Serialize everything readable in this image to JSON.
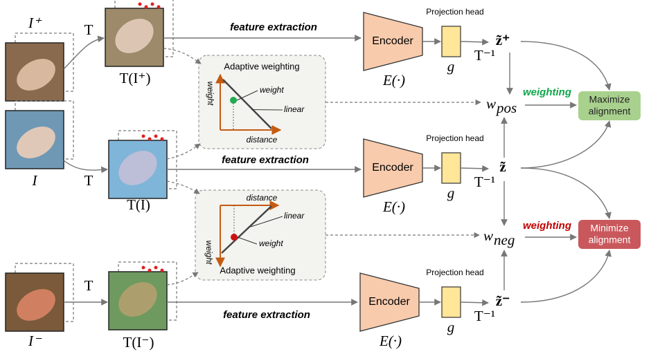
{
  "rows": [
    {
      "input": "I⁺",
      "transform": "T",
      "transformed": "T(I⁺)",
      "feature": "feature extraction",
      "encoder": "Encoder",
      "encoder_fn": "E(·)",
      "head_title": "Projection head",
      "head": "g",
      "inverse": "T⁻¹",
      "z": "z̃⁺"
    },
    {
      "input": "I",
      "transform": "T",
      "transformed": "T(I)",
      "feature": "feature extraction",
      "encoder": "Encoder",
      "encoder_fn": "E(·)",
      "head_title": "Projection head",
      "head": "g",
      "inverse": "T⁻¹",
      "z": "z̃"
    },
    {
      "input": "I⁻",
      "transform": "T",
      "transformed": "T(I⁻)",
      "feature": "feature extraction",
      "encoder": "Encoder",
      "encoder_fn": "E(·)",
      "head_title": "Projection head",
      "head": "g",
      "inverse": "T⁻¹",
      "z": "z̃⁻"
    }
  ],
  "panels": [
    {
      "title": "Adaptive weighting",
      "y_axis": "weight",
      "x_axis": "distance",
      "line": "linear",
      "point": "weight"
    },
    {
      "title": "Adaptive weighting",
      "y_axis": "weight",
      "x_axis": "distance",
      "line": "linear",
      "point": "weight"
    }
  ],
  "weights": [
    {
      "base": "w",
      "sub": "pos",
      "tag": "weighting",
      "outcome": [
        "Maximize",
        "alignment"
      ]
    },
    {
      "base": "w",
      "sub": "neg",
      "tag": "weighting",
      "outcome": [
        "Minimize",
        "alignment"
      ]
    }
  ]
}
